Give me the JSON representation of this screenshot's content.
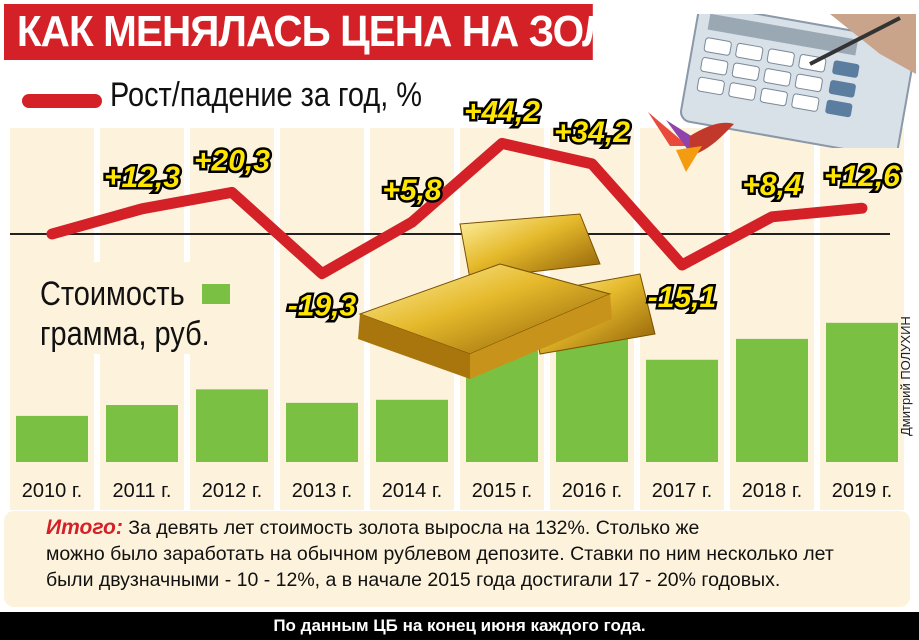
{
  "title": "КАК МЕНЯЛАСЬ ЦЕНА НА ЗОЛОТО",
  "legend": {
    "line_label": "Рост/падение за год, %",
    "bar_label_1": "Стоимость",
    "bar_label_2": "грамма, руб."
  },
  "colors": {
    "accent_red": "#d42127",
    "bar_green": "#7ac143",
    "band_beige": "#fdf3dc",
    "label_yellow": "#ffe600"
  },
  "chart_data": {
    "type": "bar",
    "categories": [
      "2010 г.",
      "2011 г.",
      "2012 г.",
      "2013 г.",
      "2014 г.",
      "2015 г.",
      "2016 г.",
      "2017 г.",
      "2018 г.",
      "2019 г."
    ],
    "series": [
      {
        "name": "Стоимость грамма, руб.",
        "type": "bar",
        "values": [
          1060,
          1310,
          1670,
          1360,
          1430,
          2560,
          3340,
          2350,
          2830,
          3200
        ]
      },
      {
        "name": "Рост/падение за год, %",
        "type": "line",
        "values": [
          null,
          12.3,
          20.3,
          -19.3,
          5.8,
          44.2,
          34.2,
          -15.1,
          8.4,
          12.6
        ],
        "labels": [
          "",
          "+12,3",
          "+20,3",
          "-19,3",
          "+5,8",
          "+44,2",
          "+34,2",
          "-15,1",
          "+8,4",
          "+12,6"
        ]
      }
    ]
  },
  "note": {
    "lead": "Итого:",
    "line1": "За девять лет стоимость золота выросла на 132%. Столько же",
    "line2": "можно было заработать на обычном рублевом депозите. Ставки по ним несколько лет",
    "line3": "были двузначными - 10 - 12%, а в начале 2015 года достигали 17 - 20% годовых."
  },
  "footer": "По данным ЦБ на конец июня каждого года.",
  "author": "Дмитрий ПОЛУХИН",
  "decor": {
    "calculator_icon": "calculator-icon",
    "logo_icon": "bird-logo-icon",
    "gold_icon": "gold-bars-icon"
  }
}
